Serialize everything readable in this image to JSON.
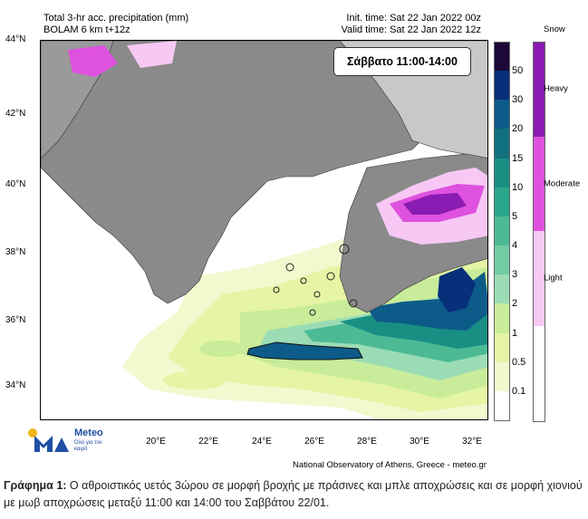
{
  "header": {
    "title": "Total 3-hr acc. precipitation (mm)",
    "model": "BOLAM 6 km t+12z",
    "init_time": "Init. time: Sat 22 Jan 2022 00z",
    "valid_time": "Valid time: Sat 22 Jan 2022 12z"
  },
  "time_box": "Σάββατο 11:00-14:00",
  "lat_labels": [
    "44°N",
    "42°N",
    "40°N",
    "38°N",
    "36°N",
    "34°N"
  ],
  "lon_labels": [
    "20°E",
    "22°E",
    "24°E",
    "26°E",
    "28°E",
    "30°E",
    "32°E"
  ],
  "rain_legend": {
    "levels": [
      "50",
      "30",
      "20",
      "15",
      "10",
      "5",
      "4",
      "3",
      "2",
      "1",
      "0.5",
      "0.1"
    ],
    "colors": [
      "#1c0838",
      "#08307a",
      "#0d5b88",
      "#11707e",
      "#198f84",
      "#2aa68a",
      "#4cbb95",
      "#73cca5",
      "#9bdcb5",
      "#c8ec9a",
      "#e5f5a5",
      "#f1f9cf",
      "#ffffff"
    ]
  },
  "snow_legend": {
    "title": "Snow",
    "labels": [
      "Heavy",
      "Moderate",
      "Light"
    ],
    "colors": [
      "#8a1bb3",
      "#df52df",
      "#f7c8f4",
      "#ffffff"
    ]
  },
  "logo": {
    "name": "Meteo",
    "tagline": "Όλα για τον καιρό"
  },
  "credit": "National Observatory of Athens, Greece - meteo.gr",
  "caption": {
    "label": "Γράφημα 1:",
    "text": " Ο αθροιστικός υετός 3ώρου σε μορφή βροχής με πράσινες και μπλε αποχρώσεις και σε μορφή χιονιού με μωβ αποχρώσεις μεταξύ 11:00 και 14:00 του Σαββάτου 22/01."
  }
}
